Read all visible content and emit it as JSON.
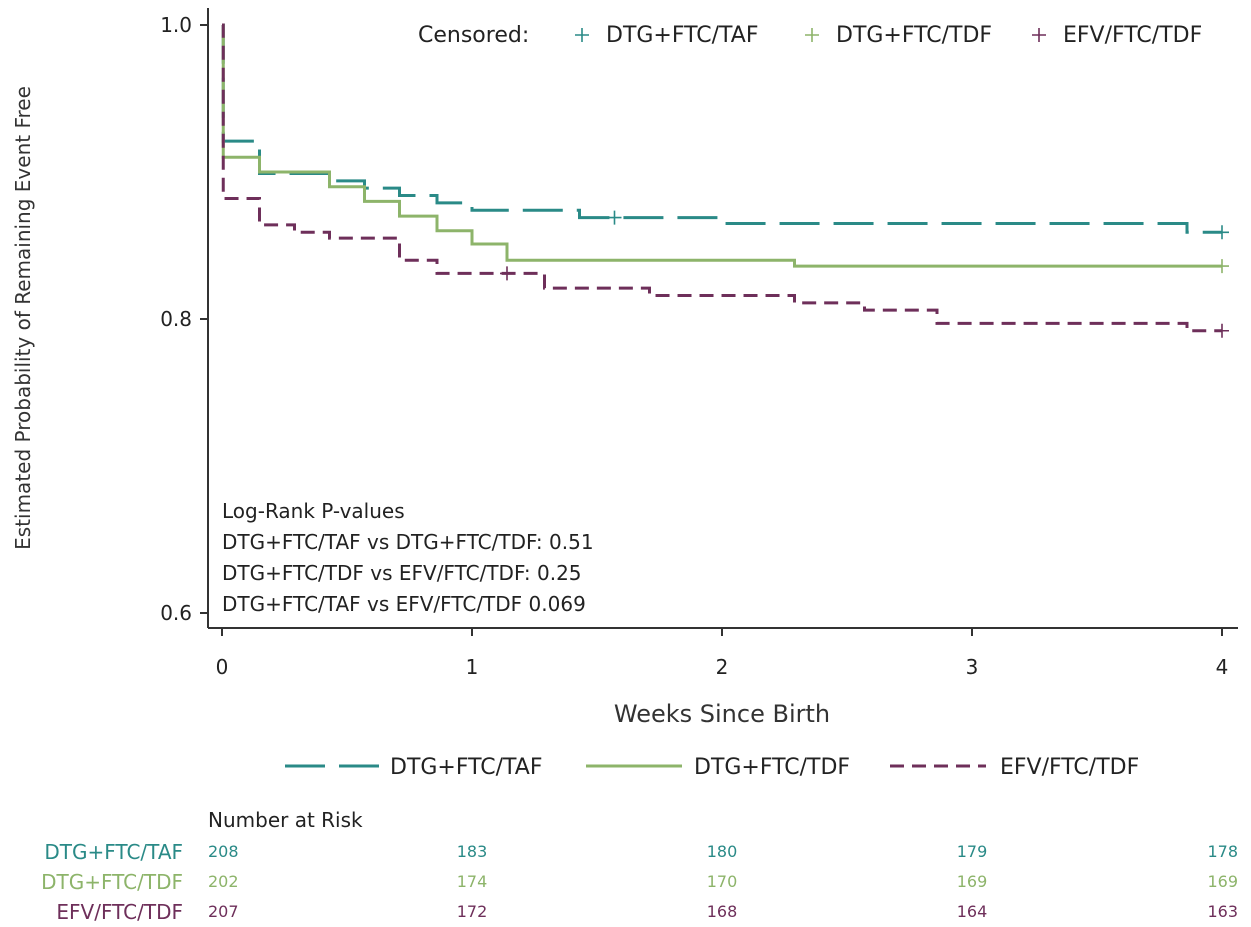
{
  "chart_data": {
    "type": "line",
    "xlabel": "Weeks Since Birth",
    "ylabel": "Estimated Probability of Remaining Event Free",
    "xlim": [
      0,
      4
    ],
    "ylim": [
      0.6,
      1.0
    ],
    "x_ticks": [
      "0",
      "1",
      "2",
      "3",
      "4"
    ],
    "y_ticks": [
      "0.6",
      "0.8",
      "1.0"
    ],
    "censored_label": "Censored:",
    "legend_position": "bottom",
    "censored_legend_position": "top-right",
    "series": [
      {
        "name": "DTG+FTC/TAF",
        "color": "#2a8a87",
        "dash": "long-dash",
        "steps": [
          [
            0,
            1.0
          ],
          [
            0.005,
            0.921
          ],
          [
            0.15,
            0.899
          ],
          [
            0.43,
            0.894
          ],
          [
            0.57,
            0.889
          ],
          [
            0.71,
            0.884
          ],
          [
            0.86,
            0.879
          ],
          [
            1.0,
            0.874
          ],
          [
            1.43,
            0.869
          ],
          [
            2.0,
            0.865
          ],
          [
            3.86,
            0.859
          ],
          [
            4.0,
            0.859
          ]
        ],
        "censored": [
          [
            1.57,
            0.869
          ],
          [
            4.0,
            0.859
          ]
        ]
      },
      {
        "name": "DTG+FTC/TDF",
        "color": "#8db46a",
        "dash": "solid",
        "steps": [
          [
            0,
            1.0
          ],
          [
            0.005,
            0.91
          ],
          [
            0.15,
            0.9
          ],
          [
            0.43,
            0.89
          ],
          [
            0.57,
            0.88
          ],
          [
            0.71,
            0.87
          ],
          [
            0.86,
            0.86
          ],
          [
            1.0,
            0.851
          ],
          [
            1.14,
            0.84
          ],
          [
            2.29,
            0.836
          ],
          [
            4.0,
            0.836
          ]
        ],
        "censored": [
          [
            4.0,
            0.836
          ]
        ]
      },
      {
        "name": "EFV/FTC/TDF",
        "color": "#6e2f5a",
        "dash": "short-dash",
        "steps": [
          [
            0,
            1.0
          ],
          [
            0.005,
            0.882
          ],
          [
            0.15,
            0.864
          ],
          [
            0.29,
            0.859
          ],
          [
            0.43,
            0.855
          ],
          [
            0.71,
            0.84
          ],
          [
            0.86,
            0.831
          ],
          [
            1.29,
            0.821
          ],
          [
            1.71,
            0.816
          ],
          [
            2.29,
            0.811
          ],
          [
            2.57,
            0.806
          ],
          [
            2.86,
            0.797
          ],
          [
            3.86,
            0.792
          ],
          [
            4.0,
            0.792
          ]
        ],
        "censored": [
          [
            1.14,
            0.831
          ],
          [
            4.0,
            0.792
          ]
        ]
      }
    ],
    "annotations": [
      "Log-Rank P-values",
      "DTG+FTC/TAF vs DTG+FTC/TDF: 0.51",
      "DTG+FTC/TDF vs EFV/FTC/TDF: 0.25",
      "DTG+FTC/TAF vs EFV/FTC/TDF 0.069"
    ],
    "number_at_risk": {
      "title": "Number at Risk",
      "rows": [
        {
          "name": "DTG+FTC/TAF",
          "color": "#2a8a87",
          "values": [
            "208",
            "183",
            "180",
            "179",
            "178"
          ]
        },
        {
          "name": "DTG+FTC/TDF",
          "color": "#8db46a",
          "values": [
            "202",
            "174",
            "170",
            "169",
            "169"
          ]
        },
        {
          "name": "EFV/FTC/TDF",
          "color": "#6e2f5a",
          "values": [
            "207",
            "172",
            "168",
            "164",
            "163"
          ]
        }
      ]
    }
  }
}
